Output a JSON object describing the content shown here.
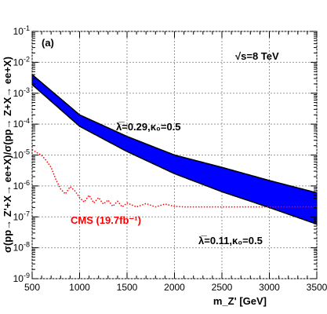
{
  "chart_data": {
    "type": "area",
    "panel_label": "(a)",
    "energy_label": "√s=8 TeV",
    "xlabel": "m_Z' [GeV]",
    "ylabel": "σ(pp→ Z'+X→ ee+X)/σ(pp→ Z+X→ ee+X)",
    "xlim": [
      500,
      3500
    ],
    "ylim": [
      1e-09,
      0.1
    ],
    "yscale": "log",
    "grid": true,
    "x_tick_labels": [
      "500",
      "1000",
      "1500",
      "2000",
      "2500",
      "3000",
      "3500"
    ],
    "y_tick_labels": [
      "10^-9",
      "10^-8",
      "10^-7",
      "10^-6",
      "10^-5",
      "10^-4",
      "10^-3",
      "10^-2",
      "10^-1"
    ],
    "band": {
      "color": "#0000ff",
      "x": [
        500,
        1000,
        1500,
        2000,
        2500,
        3000,
        3500
      ],
      "upper": [
        0.004,
        0.0002,
        4e-05,
        1e-05,
        4e-06,
        1.5e-06,
        6e-07
      ],
      "lower": [
        0.0019,
        8.5e-05,
        1.3e-05,
        2.5e-06,
        6.5e-07,
        2e-07,
        5.8e-08
      ],
      "upper_label_lambda": "λ̅=0.29,",
      "upper_label_kappa": "κ₀=0.5",
      "lower_label_lambda": "λ̅=0.11,",
      "lower_label_kappa": "κ₀=0.5"
    },
    "cms_limit": {
      "name": "CMS (19.7fb⁻¹)",
      "color": "#ff0000",
      "style": "dotted",
      "x": [
        500,
        550,
        600,
        650,
        700,
        750,
        800,
        850,
        900,
        950,
        1000,
        1050,
        1100,
        1150,
        1200,
        1250,
        1300,
        1350,
        1400,
        1450,
        1500,
        1600,
        1700,
        1800,
        1900,
        2000,
        2100,
        2500,
        3000,
        3500
      ],
      "y": [
        1.5e-05,
        1.2e-05,
        9.8e-06,
        6.5e-06,
        4e-06,
        1.6e-06,
        8e-07,
        5.5e-07,
        9.5e-07,
        7e-07,
        4.2e-07,
        3e-07,
        5e-07,
        2.8e-07,
        4.2e-07,
        2.6e-07,
        3.5e-07,
        2.2e-07,
        3.2e-07,
        2.1e-07,
        2.8e-07,
        2.1e-07,
        2.7e-07,
        2.1e-07,
        2.6e-07,
        2.2e-07,
        2.1e-07,
        2.1e-07,
        2.1e-07,
        2.1e-07
      ]
    }
  }
}
